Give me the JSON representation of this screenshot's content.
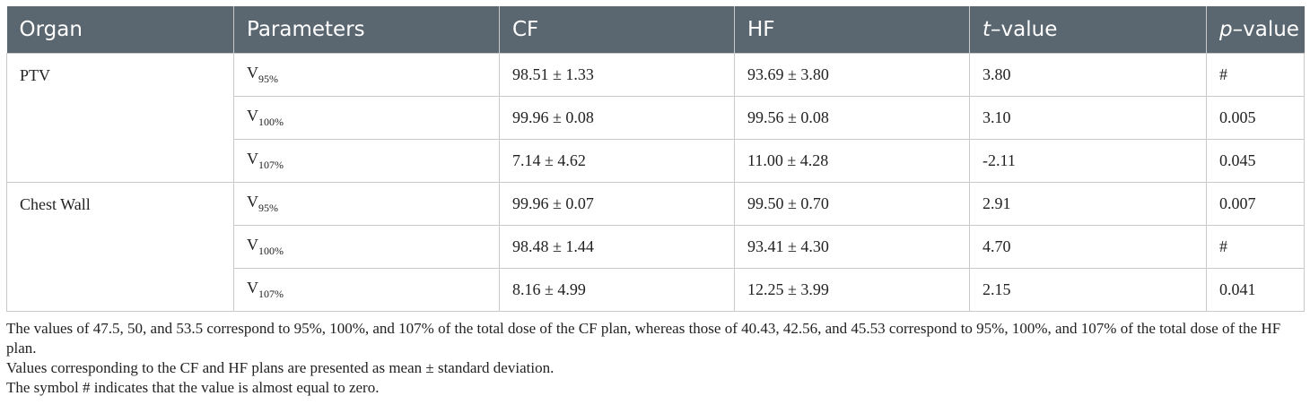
{
  "header": {
    "organ": "Organ",
    "parameters": "Parameters",
    "cf": "CF",
    "hf": "HF",
    "t_italic": "t",
    "t_rest": "–value",
    "p_italic": "p",
    "p_rest": "–value"
  },
  "groups": [
    {
      "organ": "PTV",
      "rows": [
        {
          "param": "V",
          "sub": "95%",
          "cf": "98.51 ± 1.33",
          "hf": "93.69 ± 3.80",
          "t": "3.80",
          "p": "#"
        },
        {
          "param": "V",
          "sub": "100%",
          "cf": "99.96 ± 0.08",
          "hf": "99.56 ± 0.08",
          "t": "3.10",
          "p": "0.005"
        },
        {
          "param": "V",
          "sub": "107%",
          "cf": "7.14 ± 4.62",
          "hf": "11.00 ± 4.28",
          "t": "-2.11",
          "p": "0.045"
        }
      ]
    },
    {
      "organ": "Chest Wall",
      "rows": [
        {
          "param": "V",
          "sub": "95%",
          "cf": "99.96 ± 0.07",
          "hf": "99.50 ± 0.70",
          "t": "2.91",
          "p": "0.007"
        },
        {
          "param": "V",
          "sub": "100%",
          "cf": "98.48 ± 1.44",
          "hf": "93.41 ± 4.30",
          "t": "4.70",
          "p": "#"
        },
        {
          "param": "V",
          "sub": "107%",
          "cf": "8.16 ± 4.99",
          "hf": "12.25 ± 3.99",
          "t": "2.15",
          "p": "0.041"
        }
      ]
    }
  ],
  "footnotes": [
    "The values of 47.5, 50, and 53.5 correspond to 95%, 100%, and 107% of the total dose of the CF plan, whereas those of 40.43, 42.56, and 45.53 correspond to 95%, 100%, and 107% of the total dose of the HF plan.",
    "Values corresponding to the CF and HF plans are presented as mean ± standard deviation.",
    "The symbol # indicates that the value is almost equal to zero."
  ]
}
